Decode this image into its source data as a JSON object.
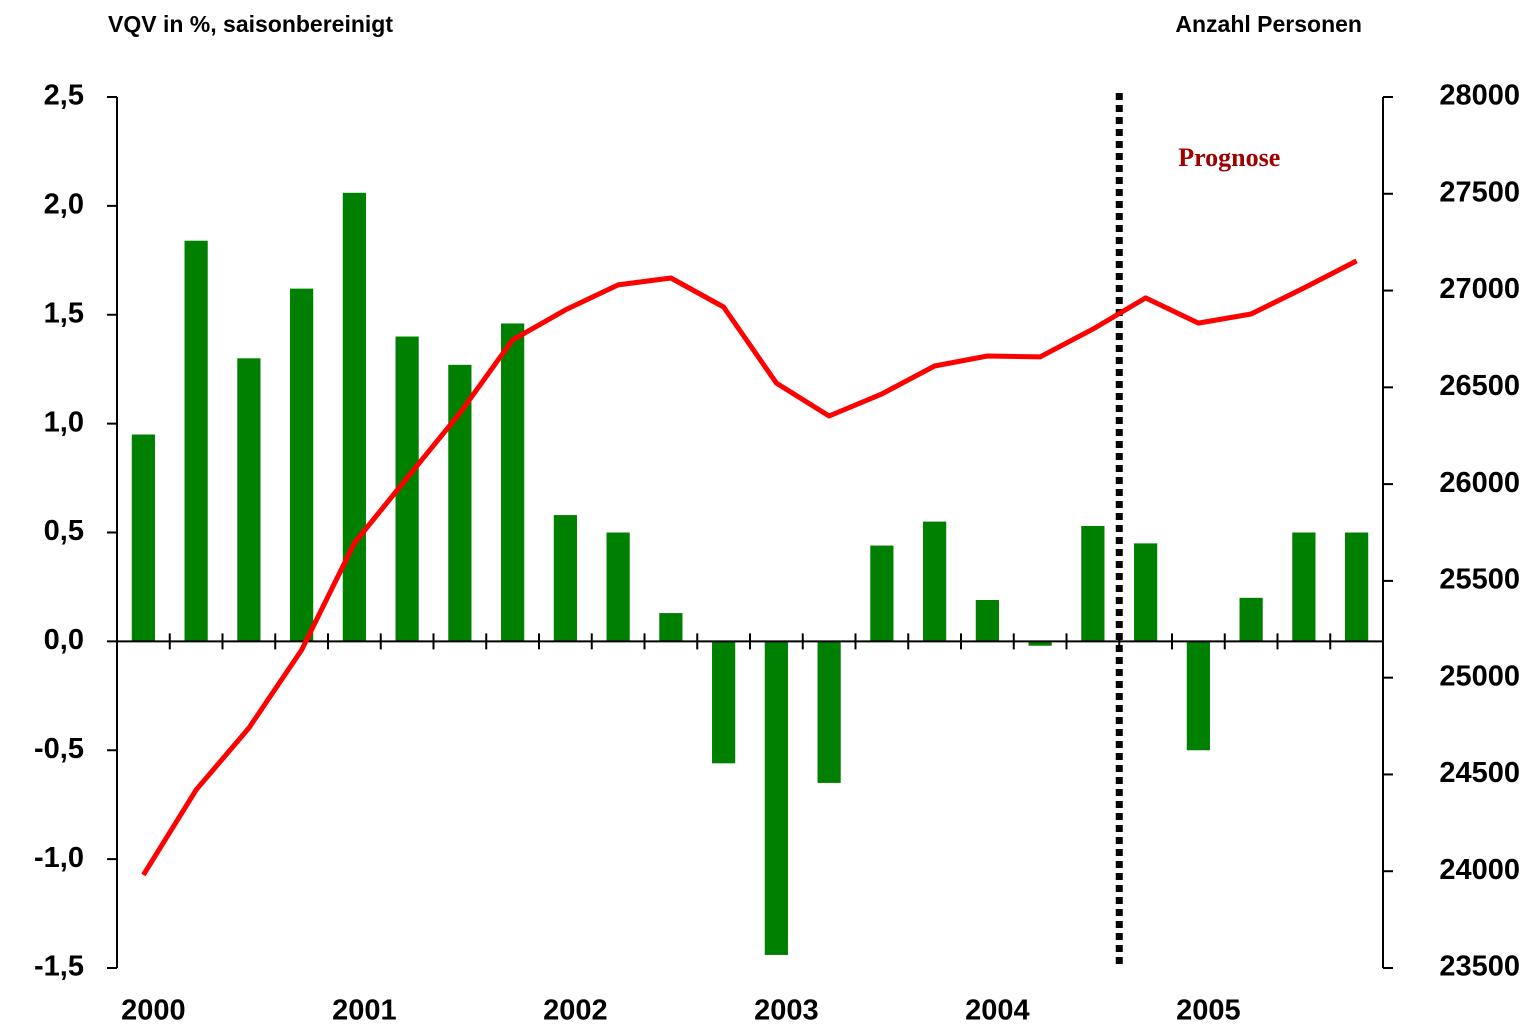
{
  "chart_data": {
    "type": "bar",
    "y_label": "VQV in %, saisonbereinigt",
    "y2_label": "Anzahl Personen",
    "annotation": "Prognose",
    "categories": [
      "2000",
      null,
      null,
      null,
      "2001",
      null,
      null,
      null,
      "2002",
      null,
      null,
      null,
      "2003",
      null,
      null,
      null,
      "2004",
      null,
      null,
      null,
      "2005",
      null,
      null,
      null
    ],
    "series": [
      {
        "color": "#008000",
        "values": [
          0.95,
          1.84,
          1.3,
          1.62,
          2.06,
          1.4,
          1.27,
          1.46,
          0.58,
          0.5,
          0.13,
          -0.56,
          -1.44,
          -0.65,
          0.44,
          0.55,
          0.19,
          -0.02,
          0.53,
          0.45,
          -0.5,
          0.2,
          0.5,
          0.5
        ]
      },
      {
        "type": "line",
        "axis": "y2",
        "color": "#ff0000",
        "values": [
          23981,
          24420,
          24740,
          25143,
          25696,
          26032,
          26367,
          26745,
          26900,
          27029,
          27065,
          26915,
          26522,
          26352,
          26466,
          26610,
          26662,
          26657,
          26801,
          26962,
          26832,
          26879,
          27013,
          27153
        ]
      }
    ],
    "ylim": [
      -1.5,
      2.5
    ],
    "yticks": [
      {
        "value": -1.5,
        "label": "-1,5"
      },
      {
        "value": -1.0,
        "label": "-1,0"
      },
      {
        "value": -0.5,
        "label": "-0,5"
      },
      {
        "value": 0,
        "label": "0,0"
      },
      {
        "value": 0.5,
        "label": "0,5"
      },
      {
        "value": 1.0,
        "label": "1,0"
      },
      {
        "value": 1.5,
        "label": "1,5"
      },
      {
        "value": 2.0,
        "label": "2,0"
      },
      {
        "value": 2.5,
        "label": "2,5"
      }
    ],
    "y2lim": [
      23500,
      28000
    ],
    "y2ticks": [
      23500,
      24000,
      24500,
      25000,
      25500,
      26000,
      26500,
      27000,
      27500,
      28000
    ],
    "grid": false
  }
}
